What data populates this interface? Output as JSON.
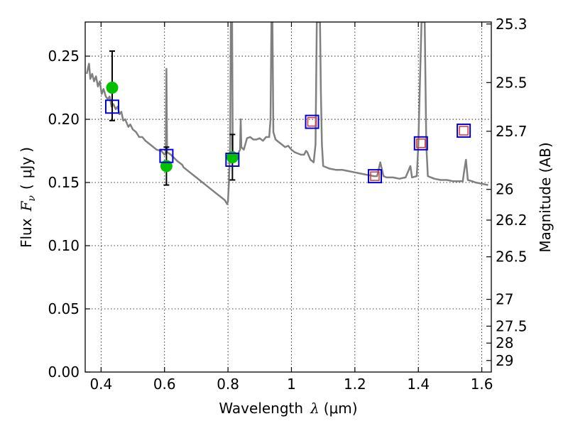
{
  "chart_data": {
    "type": "scatter",
    "xlabel": "Wavelength",
    "xlabel_symbol": "λ",
    "xlabel_unit": "(μm)",
    "ylabel": "Flux",
    "ylabel_symbol": "F",
    "ylabel_subscript": "ν",
    "ylabel_unit_open": "(",
    "ylabel_unit": "μJy",
    "ylabel_unit_close": ")",
    "y2label": "Magnitude (AB)",
    "xlim": [
      0.35,
      1.63
    ],
    "ylim": [
      0.0,
      0.277
    ],
    "grid": true,
    "x_ticks": [
      {
        "value": 0.4,
        "label": "0.4"
      },
      {
        "value": 0.6,
        "label": "0.6"
      },
      {
        "value": 0.8,
        "label": "0.8"
      },
      {
        "value": 1.0,
        "label": "1"
      },
      {
        "value": 1.2,
        "label": "1.2"
      },
      {
        "value": 1.4,
        "label": "1.4"
      },
      {
        "value": 1.6,
        "label": "1.6"
      }
    ],
    "y_ticks": [
      {
        "value": 0.0,
        "label": "0.00"
      },
      {
        "value": 0.05,
        "label": "0.05"
      },
      {
        "value": 0.1,
        "label": "0.10"
      },
      {
        "value": 0.15,
        "label": "0.15"
      },
      {
        "value": 0.2,
        "label": "0.20"
      },
      {
        "value": 0.25,
        "label": "0.25"
      }
    ],
    "y2_ticks": [
      {
        "mag": 25.3,
        "label": "25.3"
      },
      {
        "mag": 25.5,
        "label": "25.5"
      },
      {
        "mag": 25.7,
        "label": "25.7"
      },
      {
        "mag": 26.0,
        "label": "26"
      },
      {
        "mag": 26.2,
        "label": "26.2"
      },
      {
        "mag": 26.5,
        "label": "26.5"
      },
      {
        "mag": 27.0,
        "label": "27"
      },
      {
        "mag": 27.5,
        "label": "27.5"
      },
      {
        "mag": 28.0,
        "label": "28"
      },
      {
        "mag": 29.0,
        "label": "29"
      }
    ],
    "series": [
      {
        "kind": "model_spectrum",
        "color": "#808080",
        "points": [
          [
            0.355,
            0.236
          ],
          [
            0.362,
            0.244
          ],
          [
            0.366,
            0.232
          ],
          [
            0.372,
            0.236
          ],
          [
            0.378,
            0.23
          ],
          [
            0.384,
            0.234
          ],
          [
            0.39,
            0.226
          ],
          [
            0.396,
            0.23
          ],
          [
            0.402,
            0.22
          ],
          [
            0.408,
            0.224
          ],
          [
            0.415,
            0.218
          ],
          [
            0.421,
            0.216
          ],
          [
            0.427,
            0.218
          ],
          [
            0.433,
            0.21
          ],
          [
            0.439,
            0.212
          ],
          [
            0.446,
            0.208
          ],
          [
            0.452,
            0.21
          ],
          [
            0.458,
            0.204
          ],
          [
            0.464,
            0.206
          ],
          [
            0.47,
            0.199
          ],
          [
            0.476,
            0.2
          ],
          [
            0.486,
            0.194
          ],
          [
            0.492,
            0.196
          ],
          [
            0.5,
            0.192
          ],
          [
            0.51,
            0.19
          ],
          [
            0.52,
            0.186
          ],
          [
            0.53,
            0.186
          ],
          [
            0.54,
            0.183
          ],
          [
            0.55,
            0.181
          ],
          [
            0.56,
            0.179
          ],
          [
            0.575,
            0.176
          ],
          [
            0.59,
            0.175
          ],
          [
            0.6,
            0.172
          ],
          [
            0.604,
            0.174
          ],
          [
            0.606,
            0.24
          ],
          [
            0.608,
            0.174
          ],
          [
            0.62,
            0.172
          ],
          [
            0.64,
            0.167
          ],
          [
            0.656,
            0.164
          ],
          [
            0.66,
            0.162
          ],
          [
            0.68,
            0.158
          ],
          [
            0.7,
            0.154
          ],
          [
            0.72,
            0.15
          ],
          [
            0.74,
            0.146
          ],
          [
            0.76,
            0.142
          ],
          [
            0.78,
            0.138
          ],
          [
            0.79,
            0.136
          ],
          [
            0.797,
            0.133
          ],
          [
            0.8,
            0.135
          ],
          [
            0.803,
            0.15
          ],
          [
            0.805,
            0.165
          ],
          [
            0.807,
            0.18
          ],
          [
            0.809,
            0.277
          ],
          [
            0.813,
            0.277
          ],
          [
            0.815,
            0.175
          ],
          [
            0.82,
            0.17
          ],
          [
            0.83,
            0.172
          ],
          [
            0.838,
            0.176
          ],
          [
            0.84,
            0.2
          ],
          [
            0.842,
            0.178
          ],
          [
            0.85,
            0.176
          ],
          [
            0.86,
            0.185
          ],
          [
            0.87,
            0.186
          ],
          [
            0.88,
            0.184
          ],
          [
            0.89,
            0.184
          ],
          [
            0.9,
            0.185
          ],
          [
            0.91,
            0.183
          ],
          [
            0.92,
            0.186
          ],
          [
            0.93,
            0.186
          ],
          [
            0.934,
            0.2
          ],
          [
            0.937,
            0.277
          ],
          [
            0.94,
            0.277
          ],
          [
            0.943,
            0.19
          ],
          [
            0.95,
            0.184
          ],
          [
            0.96,
            0.182
          ],
          [
            0.97,
            0.18
          ],
          [
            0.98,
            0.178
          ],
          [
            0.99,
            0.179
          ],
          [
            1.0,
            0.176
          ],
          [
            1.01,
            0.174
          ],
          [
            1.02,
            0.173
          ],
          [
            1.03,
            0.172
          ],
          [
            1.04,
            0.172
          ],
          [
            1.046,
            0.175
          ],
          [
            1.05,
            0.174
          ],
          [
            1.06,
            0.168
          ],
          [
            1.07,
            0.166
          ],
          [
            1.076,
            0.18
          ],
          [
            1.08,
            0.277
          ],
          [
            1.09,
            0.277
          ],
          [
            1.093,
            0.22
          ],
          [
            1.096,
            0.18
          ],
          [
            1.1,
            0.163
          ],
          [
            1.12,
            0.161
          ],
          [
            1.14,
            0.16
          ],
          [
            1.16,
            0.16
          ],
          [
            1.18,
            0.159
          ],
          [
            1.2,
            0.158
          ],
          [
            1.22,
            0.157
          ],
          [
            1.24,
            0.156
          ],
          [
            1.26,
            0.155
          ],
          [
            1.27,
            0.155
          ],
          [
            1.28,
            0.166
          ],
          [
            1.29,
            0.155
          ],
          [
            1.3,
            0.154
          ],
          [
            1.32,
            0.154
          ],
          [
            1.34,
            0.153
          ],
          [
            1.36,
            0.154
          ],
          [
            1.37,
            0.16
          ],
          [
            1.375,
            0.163
          ],
          [
            1.38,
            0.154
          ],
          [
            1.395,
            0.155
          ],
          [
            1.4,
            0.18
          ],
          [
            1.405,
            0.23
          ],
          [
            1.41,
            0.277
          ],
          [
            1.42,
            0.277
          ],
          [
            1.425,
            0.18
          ],
          [
            1.43,
            0.155
          ],
          [
            1.45,
            0.153
          ],
          [
            1.47,
            0.152
          ],
          [
            1.49,
            0.152
          ],
          [
            1.51,
            0.151
          ],
          [
            1.53,
            0.151
          ],
          [
            1.54,
            0.151
          ],
          [
            1.545,
            0.16
          ],
          [
            1.55,
            0.168
          ],
          [
            1.556,
            0.152
          ],
          [
            1.57,
            0.151
          ],
          [
            1.58,
            0.15
          ],
          [
            1.6,
            0.149
          ],
          [
            1.62,
            0.148
          ]
        ]
      },
      {
        "kind": "observed",
        "marker": "circle",
        "color": "#00c000",
        "points": [
          {
            "x": 0.435,
            "y": 0.225,
            "err_lo": 0.199,
            "err_hi": 0.254
          },
          {
            "x": 0.606,
            "y": 0.163,
            "err_lo": 0.148,
            "err_hi": 0.178
          },
          {
            "x": 0.814,
            "y": 0.17,
            "err_lo": 0.152,
            "err_hi": 0.188
          }
        ]
      },
      {
        "kind": "model_photometry",
        "marker": "square",
        "color": "#0000dd",
        "points": [
          {
            "x": 0.435,
            "y": 0.21
          },
          {
            "x": 0.606,
            "y": 0.171
          },
          {
            "x": 0.814,
            "y": 0.168
          },
          {
            "x": 1.065,
            "y": 0.198
          },
          {
            "x": 1.263,
            "y": 0.155
          },
          {
            "x": 1.408,
            "y": 0.181
          },
          {
            "x": 1.543,
            "y": 0.191
          }
        ]
      },
      {
        "kind": "inner_photometry",
        "marker": "square",
        "color": "#dd3333",
        "points": [
          {
            "x": 1.065,
            "y": 0.198
          },
          {
            "x": 1.263,
            "y": 0.155
          },
          {
            "x": 1.408,
            "y": 0.181
          },
          {
            "x": 1.543,
            "y": 0.191
          }
        ]
      }
    ]
  }
}
